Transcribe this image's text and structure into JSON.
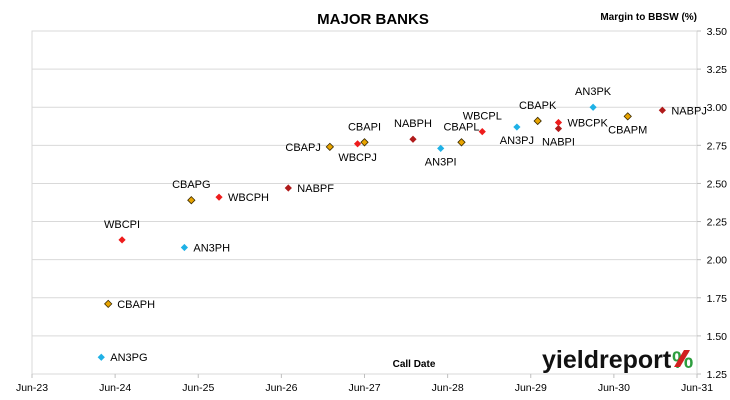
{
  "chart_data": {
    "type": "scatter",
    "title": "MAJOR BANKS",
    "ylabel": "Margin to BBSW (%)",
    "xlabel": "Call Date",
    "ylim": [
      1.25,
      3.5
    ],
    "ytick_labels": [
      "1.25",
      "1.50",
      "1.75",
      "2.00",
      "2.25",
      "2.50",
      "2.75",
      "3.00",
      "3.25",
      "3.50"
    ],
    "xtick_labels": [
      "Jun-23",
      "Jun-24",
      "Jun-25",
      "Jun-26",
      "Jun-27",
      "Jun-28",
      "Jun-29",
      "Jun-30",
      "Jun-31"
    ],
    "x_axis": "dates, yearly ticks at June 2023 to June 2031",
    "grid": "horizontal",
    "series_colors": {
      "ANZ": "#1fb1e6",
      "CBA": "#e8a400",
      "NAB": "#b01a1a",
      "WBC": "#ee1c1c"
    },
    "points": [
      {
        "label": "AN3PG",
        "x": "2024-04",
        "y": 1.36,
        "bank": "ANZ",
        "label_pos": "right"
      },
      {
        "label": "CBAPH",
        "x": "2024-05",
        "y": 1.71,
        "bank": "CBA",
        "label_pos": "right"
      },
      {
        "label": "WBCPI",
        "x": "2024-07",
        "y": 2.13,
        "bank": "WBC",
        "label_pos": "above"
      },
      {
        "label": "AN3PH",
        "x": "2025-04",
        "y": 2.08,
        "bank": "ANZ",
        "label_pos": "right"
      },
      {
        "label": "CBAPG",
        "x": "2025-05",
        "y": 2.39,
        "bank": "CBA",
        "label_pos": "above"
      },
      {
        "label": "WBCPH",
        "x": "2025-09",
        "y": 2.41,
        "bank": "WBC",
        "label_pos": "right"
      },
      {
        "label": "NABPF",
        "x": "2026-07",
        "y": 2.47,
        "bank": "NAB",
        "label_pos": "right"
      },
      {
        "label": "CBAPJ",
        "x": "2027-01",
        "y": 2.74,
        "bank": "CBA",
        "label_pos": "left"
      },
      {
        "label": "WBCPJ",
        "x": "2027-05",
        "y": 2.76,
        "bank": "WBC",
        "label_pos": "below"
      },
      {
        "label": "CBAPI",
        "x": "2027-06",
        "y": 2.77,
        "bank": "CBA",
        "label_pos": "above"
      },
      {
        "label": "NABPH",
        "x": "2028-01",
        "y": 2.79,
        "bank": "NAB",
        "label_pos": "above"
      },
      {
        "label": "AN3PI",
        "x": "2028-05",
        "y": 2.73,
        "bank": "ANZ",
        "label_pos": "below"
      },
      {
        "label": "CBAPL",
        "x": "2028-08",
        "y": 2.77,
        "bank": "CBA",
        "label_pos": "above"
      },
      {
        "label": "WBCPL",
        "x": "2028-11",
        "y": 2.84,
        "bank": "WBC",
        "label_pos": "above"
      },
      {
        "label": "AN3PJ",
        "x": "2029-04",
        "y": 2.87,
        "bank": "ANZ",
        "label_pos": "below"
      },
      {
        "label": "CBAPK",
        "x": "2029-07",
        "y": 2.91,
        "bank": "CBA",
        "label_pos": "above"
      },
      {
        "label": "NABPI",
        "x": "2029-10",
        "y": 2.86,
        "bank": "NAB",
        "label_pos": "below"
      },
      {
        "label": "WBCPK",
        "x": "2029-10",
        "y": 2.9,
        "bank": "WBC",
        "label_pos": "right"
      },
      {
        "label": "AN3PK",
        "x": "2030-03",
        "y": 3.0,
        "bank": "ANZ",
        "label_pos": "above"
      },
      {
        "label": "CBAPM",
        "x": "2030-08",
        "y": 2.94,
        "bank": "CBA",
        "label_pos": "below"
      },
      {
        "label": "NABPJ",
        "x": "2031-01",
        "y": 2.98,
        "bank": "NAB",
        "label_pos": "right"
      }
    ]
  },
  "logo": {
    "text": "yieldreport",
    "pct": "%"
  }
}
